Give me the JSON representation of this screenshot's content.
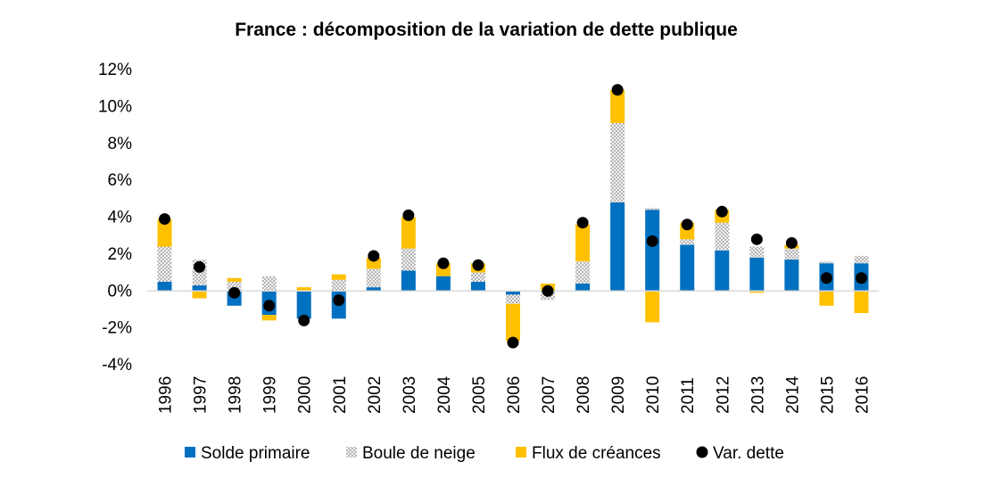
{
  "chart_data": {
    "type": "bar",
    "title": "France : décomposition de la variation de dette publique",
    "xlabel": "",
    "ylabel": "",
    "categories": [
      "1996",
      "1997",
      "1998",
      "1999",
      "2000",
      "2001",
      "2002",
      "2003",
      "2004",
      "2005",
      "2006",
      "2007",
      "2008",
      "2009",
      "2010",
      "2011",
      "2012",
      "2013",
      "2014",
      "2015",
      "2016"
    ],
    "ylim": [
      -4,
      12
    ],
    "yticks": [
      -4,
      -2,
      0,
      2,
      4,
      6,
      8,
      10,
      12
    ],
    "ytick_labels": [
      "-4%",
      "-2%",
      "0%",
      "2%",
      "4%",
      "6%",
      "8%",
      "10%",
      "12%"
    ],
    "stacked": true,
    "grid": false,
    "legend_position": "bottom",
    "series": [
      {
        "name": "Solde primaire",
        "type": "bar",
        "color": "#0070C0",
        "values": [
          0.5,
          0.3,
          -0.8,
          -1.3,
          -1.5,
          -1.5,
          0.2,
          1.1,
          0.8,
          0.5,
          -0.2,
          0.0,
          0.4,
          4.8,
          4.4,
          2.5,
          2.2,
          1.8,
          1.7,
          1.5,
          1.5
        ]
      },
      {
        "name": "Boule de neige",
        "type": "bar",
        "pattern": "dotted-grey",
        "values": [
          1.9,
          1.4,
          0.5,
          0.8,
          0.0,
          0.6,
          1.0,
          1.2,
          0.0,
          0.5,
          -0.5,
          -0.5,
          1.2,
          4.3,
          0.1,
          0.3,
          1.5,
          0.6,
          0.6,
          0.1,
          0.4
        ]
      },
      {
        "name": "Flux de créances",
        "type": "bar",
        "color": "#FFC000",
        "values": [
          1.5,
          -0.4,
          0.2,
          -0.3,
          0.2,
          0.3,
          0.6,
          1.7,
          0.7,
          0.5,
          -2.0,
          0.4,
          2.0,
          1.8,
          -1.7,
          0.9,
          0.7,
          -0.1,
          0.2,
          -0.8,
          -1.2
        ]
      },
      {
        "name": "Var. dette",
        "type": "scatter",
        "color": "#000000",
        "values": [
          3.9,
          1.3,
          -0.1,
          -0.8,
          -1.6,
          -0.5,
          1.9,
          4.1,
          1.5,
          1.4,
          -2.8,
          0.0,
          3.7,
          10.9,
          2.7,
          3.6,
          4.3,
          2.8,
          2.6,
          0.7,
          0.7
        ]
      }
    ]
  }
}
